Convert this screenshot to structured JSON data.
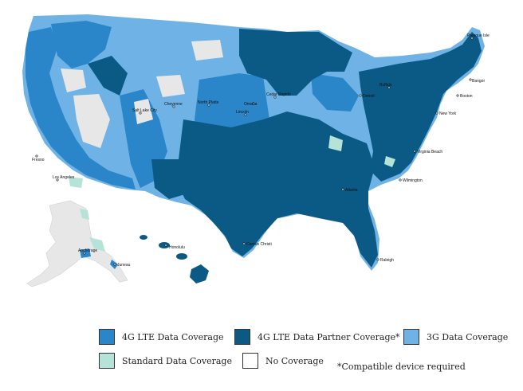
{
  "colors": {
    "lte": "#2a86c9",
    "partner": "#0b5a86",
    "g3": "#6fb3e6",
    "standard": "#b6e3d8",
    "none": "#ffffff",
    "land_gray": "#e7e7e7"
  },
  "legend": {
    "lte_label": "4G LTE Data Coverage",
    "partner_label": "4G LTE Data Partner Coverage*",
    "g3_label": "3G Data Coverage",
    "standard_label": "Standard Data Coverage",
    "none_label": "No Coverage"
  },
  "footnote": "*Compatible device required",
  "cities": [
    {
      "name": "Presque Isle"
    },
    {
      "name": "Bangor"
    },
    {
      "name": "Buffalo"
    },
    {
      "name": "Detroit"
    },
    {
      "name": "Boston"
    },
    {
      "name": "New York"
    },
    {
      "name": "Cedar Rapids"
    },
    {
      "name": "Omaha"
    },
    {
      "name": "Lincoln"
    },
    {
      "name": "North Platte"
    },
    {
      "name": "Cheyenne"
    },
    {
      "name": "Salt Lake City"
    },
    {
      "name": "Fresno"
    },
    {
      "name": "Los Angeles"
    },
    {
      "name": "Atlanta"
    },
    {
      "name": "Wilmington"
    },
    {
      "name": "Virginia Beach"
    },
    {
      "name": "Corpus Christi"
    },
    {
      "name": "Raleigh"
    },
    {
      "name": "Anchorage"
    },
    {
      "name": "Juneau"
    },
    {
      "name": "Honolulu"
    }
  ]
}
